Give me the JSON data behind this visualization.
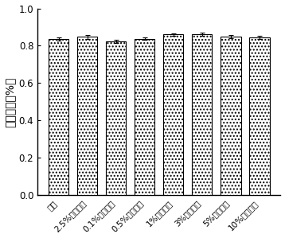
{
  "categories": [
    "纯水",
    "2.5%亚铬酸鑁",
    "0.1%山梨酸鑁",
    "0.5%山梨酸鑁",
    "1%山梨酸鑁",
    "3%山梨酸鑁",
    "5%山梨酸鑁",
    "10%山梨酸鑁"
  ],
  "values": [
    0.835,
    0.847,
    0.823,
    0.838,
    0.86,
    0.862,
    0.85,
    0.844
  ],
  "errors": [
    0.008,
    0.01,
    0.009,
    0.007,
    0.006,
    0.007,
    0.009,
    0.008
  ],
  "ylabel": "孢子化率（%）",
  "ylim": [
    0.0,
    1.0
  ],
  "yticks": [
    0.0,
    0.2,
    0.4,
    0.6,
    0.8,
    1.0
  ],
  "bar_facecolor": "#ffffff",
  "hatch": "....",
  "edge_color": "#000000",
  "background_color": "#ffffff",
  "ylabel_fontsize": 10,
  "tick_fontsize": 8.5,
  "xlabel_fontsize": 7.5,
  "bar_width": 0.7,
  "capsize": 2,
  "elinewidth": 0.8
}
